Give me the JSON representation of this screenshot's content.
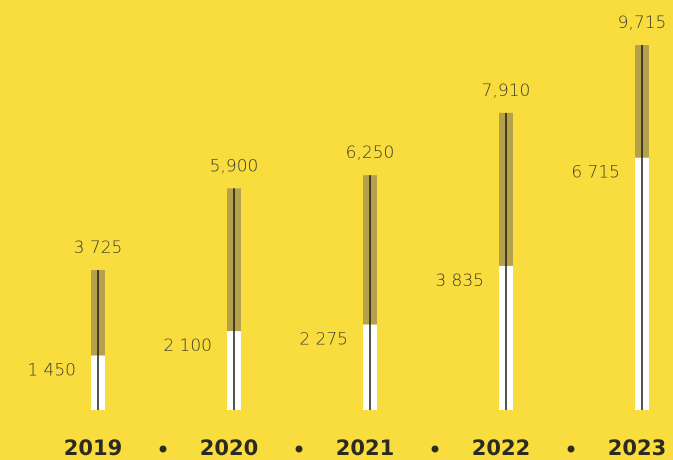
{
  "chart_data": {
    "type": "bar",
    "categories": [
      "2019",
      "2020",
      "2021",
      "2022",
      "2023"
    ],
    "series": [
      {
        "color": "#b5a14a",
        "values": [
          3725,
          5900,
          6250,
          7910,
          9715
        ],
        "value_labels": [
          "3 725",
          "5,900",
          "6,250",
          "7,910",
          "9,715"
        ]
      },
      {
        "color": "#ffffff",
        "values": [
          1450,
          2100,
          2275,
          3835,
          6715
        ],
        "value_labels": [
          "1 450",
          "2 100",
          "2 275",
          "3 835",
          "6 715"
        ]
      }
    ],
    "ylim": [
      0,
      10000
    ]
  }
}
